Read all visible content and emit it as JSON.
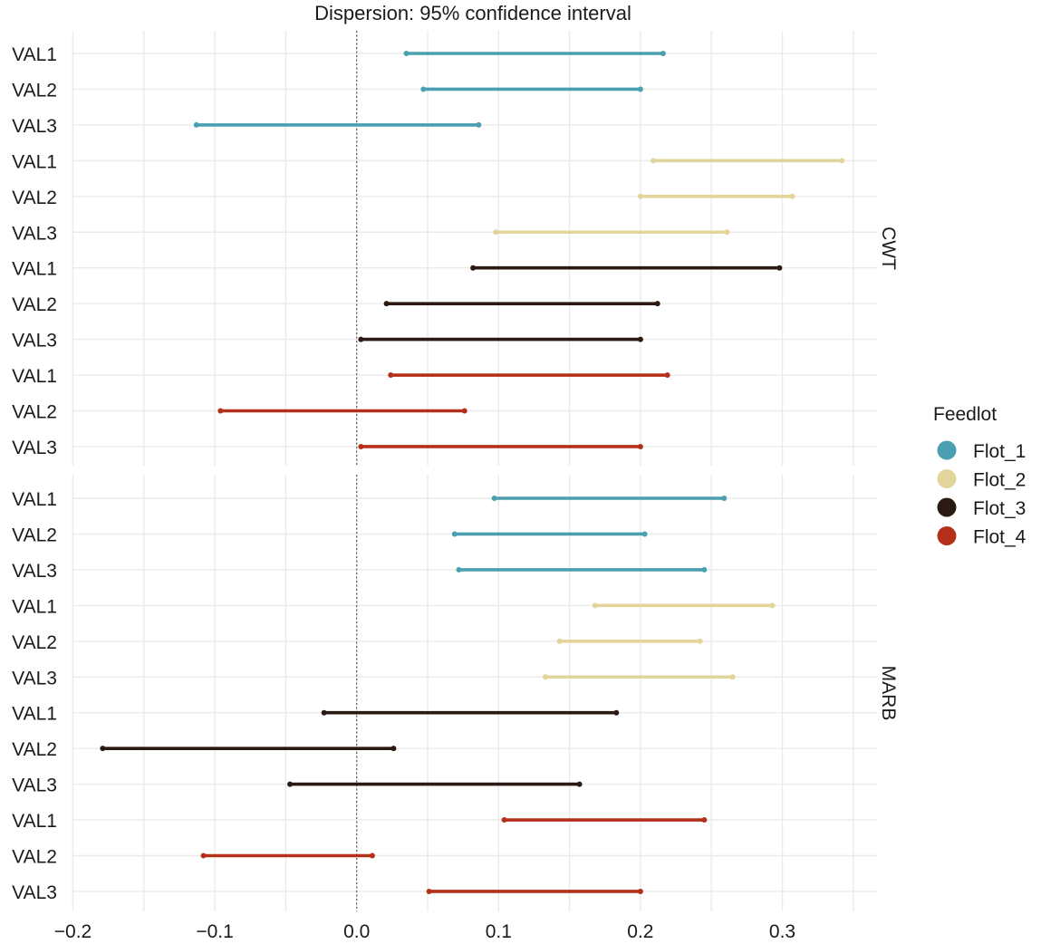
{
  "chart_data": {
    "type": "interval",
    "title": "Dispersion: 95% confidence interval",
    "xlim": [
      -0.2,
      0.37
    ],
    "x_ticks": [
      -0.2,
      -0.1,
      0.0,
      0.1,
      0.2,
      0.3
    ],
    "x_tick_labels": [
      "−0.2",
      "−0.1",
      "0.0",
      "0.1",
      "0.2",
      "0.3"
    ],
    "reference_line": 0,
    "grid": true,
    "legend": {
      "title": "Feedlot",
      "position": "right",
      "entries": [
        {
          "name": "Flot_1",
          "color": "#4aa0b0"
        },
        {
          "name": "Flot_2",
          "color": "#e2d59c"
        },
        {
          "name": "Flot_3",
          "color": "#2a1a12"
        },
        {
          "name": "Flot_4",
          "color": "#b5301a"
        }
      ]
    },
    "panels": [
      {
        "label": "CWT",
        "rows": [
          {
            "label": "VAL1",
            "group": "Flot_1",
            "low": 0.035,
            "high": 0.216
          },
          {
            "label": "VAL2",
            "group": "Flot_1",
            "low": 0.047,
            "high": 0.2
          },
          {
            "label": "VAL3",
            "group": "Flot_1",
            "low": -0.113,
            "high": 0.086
          },
          {
            "label": "VAL1",
            "group": "Flot_2",
            "low": 0.209,
            "high": 0.342
          },
          {
            "label": "VAL2",
            "group": "Flot_2",
            "low": 0.2,
            "high": 0.307
          },
          {
            "label": "VAL3",
            "group": "Flot_2",
            "low": 0.098,
            "high": 0.261
          },
          {
            "label": "VAL1",
            "group": "Flot_3",
            "low": 0.082,
            "high": 0.298
          },
          {
            "label": "VAL2",
            "group": "Flot_3",
            "low": 0.021,
            "high": 0.212
          },
          {
            "label": "VAL3",
            "group": "Flot_3",
            "low": 0.003,
            "high": 0.2
          },
          {
            "label": "VAL1",
            "group": "Flot_4",
            "low": 0.024,
            "high": 0.219
          },
          {
            "label": "VAL2",
            "group": "Flot_4",
            "low": -0.096,
            "high": 0.076
          },
          {
            "label": "VAL3",
            "group": "Flot_4",
            "low": 0.003,
            "high": 0.2
          }
        ]
      },
      {
        "label": "MARB",
        "rows": [
          {
            "label": "VAL1",
            "group": "Flot_1",
            "low": 0.097,
            "high": 0.259
          },
          {
            "label": "VAL2",
            "group": "Flot_1",
            "low": 0.069,
            "high": 0.203
          },
          {
            "label": "VAL3",
            "group": "Flot_1",
            "low": 0.072,
            "high": 0.245
          },
          {
            "label": "VAL1",
            "group": "Flot_2",
            "low": 0.168,
            "high": 0.293
          },
          {
            "label": "VAL2",
            "group": "Flot_2",
            "low": 0.143,
            "high": 0.242
          },
          {
            "label": "VAL3",
            "group": "Flot_2",
            "low": 0.133,
            "high": 0.265
          },
          {
            "label": "VAL1",
            "group": "Flot_3",
            "low": -0.023,
            "high": 0.183
          },
          {
            "label": "VAL2",
            "group": "Flot_3",
            "low": -0.179,
            "high": 0.026
          },
          {
            "label": "VAL3",
            "group": "Flot_3",
            "low": -0.047,
            "high": 0.157
          },
          {
            "label": "VAL1",
            "group": "Flot_4",
            "low": 0.104,
            "high": 0.245
          },
          {
            "label": "VAL2",
            "group": "Flot_4",
            "low": -0.108,
            "high": 0.011
          },
          {
            "label": "VAL3",
            "group": "Flot_4",
            "low": 0.051,
            "high": 0.2
          }
        ]
      }
    ]
  }
}
